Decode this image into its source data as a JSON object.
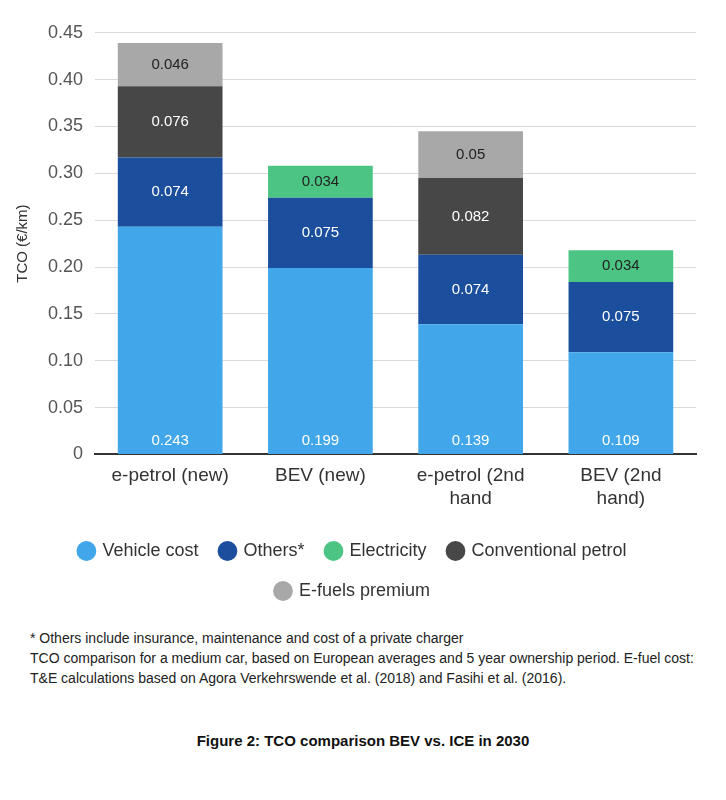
{
  "chart_data": {
    "type": "bar",
    "caption": "Figure 2: TCO comparison BEV vs. ICE in 2030",
    "y_label": "TCO (€/km)",
    "notes": [
      "* Others include insurance, maintenance and cost of a private charger",
      "TCO comparison for a medium car, based on European averages and 5 year ownership period. E-fuel cost: T&E calculations based on Agora Verkehrswende et al. (2018) and Fasihi et al. (2016)."
    ],
    "categories": [
      "e-petrol (new)",
      "BEV (new)",
      "e-petrol (2nd hand",
      "BEV (2nd hand)"
    ],
    "series": [
      {
        "name": "Vehicle cost",
        "color": "#41a7ea",
        "values": [
          0.243,
          0.199,
          0.139,
          0.109
        ]
      },
      {
        "name": "Others*",
        "color": "#1b4f9e",
        "values": [
          0.074,
          0.075,
          0.074,
          0.075
        ]
      },
      {
        "name": "Electricity",
        "color": "#4cc584",
        "values": [
          null,
          0.034,
          null,
          0.034
        ]
      },
      {
        "name": "Conventional petrol",
        "color": "#474747",
        "values": [
          0.076,
          null,
          0.082,
          null
        ]
      },
      {
        "name": "E-fuels premium",
        "color": "#a8a8a8",
        "values": [
          0.046,
          null,
          0.05,
          null
        ]
      }
    ],
    "ylim": [
      0,
      0.45
    ],
    "yticks": [
      0,
      0.05,
      {
        "value": 0.1,
        "label": "0.10"
      },
      0.15,
      {
        "value": 0.2,
        "label": "0.20"
      },
      0.25,
      {
        "value": 0.3,
        "label": "0.30"
      },
      0.35,
      {
        "value": 0.4,
        "label": "0.40"
      },
      0.45
    ],
    "stacked": true,
    "grid": true,
    "legend": "bottom",
    "data_labels": true
  }
}
